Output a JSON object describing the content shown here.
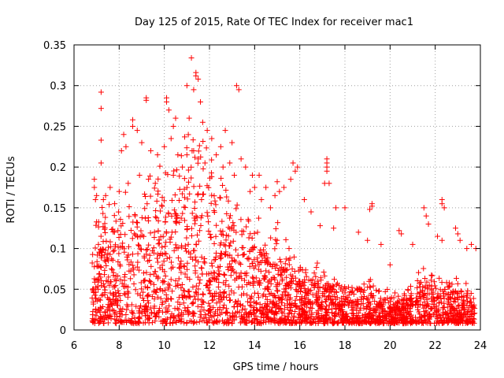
{
  "chart_data": {
    "type": "scatter",
    "title": "Day 125 of 2015, Rate Of TEC Index for receiver mac1",
    "xlabel": "GPS time / hours",
    "ylabel": "ROTI / TECUs",
    "xlim": [
      6,
      24
    ],
    "ylim": [
      0,
      0.35
    ],
    "xticks": [
      6,
      8,
      10,
      12,
      14,
      16,
      18,
      20,
      22,
      24
    ],
    "yticks": [
      0,
      0.05,
      0.1,
      0.15,
      0.2,
      0.25,
      0.3,
      0.35
    ],
    "ytick_labels": [
      "0",
      "0.05",
      "0.1",
      "0.15",
      "0.2",
      "0.25",
      "0.3",
      "0.35"
    ],
    "grid": true,
    "marker": "+",
    "color": "#ff0000",
    "series": [
      {
        "name": "mac1",
        "points": [
          [
            7.2,
            0.292
          ],
          [
            7.2,
            0.272
          ],
          [
            7.2,
            0.233
          ],
          [
            7.2,
            0.205
          ],
          [
            9.2,
            0.285
          ],
          [
            9.2,
            0.282
          ],
          [
            10.1,
            0.285
          ],
          [
            10.1,
            0.28
          ],
          [
            10.2,
            0.27
          ],
          [
            11.2,
            0.334
          ],
          [
            11.4,
            0.316
          ],
          [
            11.4,
            0.312
          ],
          [
            11.5,
            0.308
          ],
          [
            11.0,
            0.3
          ],
          [
            11.3,
            0.295
          ],
          [
            11.6,
            0.28
          ],
          [
            11.1,
            0.26
          ],
          [
            13.2,
            0.3
          ],
          [
            13.3,
            0.295
          ],
          [
            12.7,
            0.245
          ],
          [
            13.0,
            0.23
          ],
          [
            12.5,
            0.225
          ],
          [
            10.3,
            0.235
          ],
          [
            10.4,
            0.25
          ],
          [
            10.5,
            0.26
          ],
          [
            11.7,
            0.255
          ],
          [
            11.9,
            0.245
          ],
          [
            12.1,
            0.235
          ],
          [
            8.6,
            0.258
          ],
          [
            8.6,
            0.25
          ],
          [
            8.8,
            0.245
          ],
          [
            8.2,
            0.24
          ],
          [
            8.1,
            0.22
          ],
          [
            8.3,
            0.225
          ],
          [
            9.0,
            0.23
          ],
          [
            9.4,
            0.22
          ],
          [
            9.7,
            0.215
          ],
          [
            10.0,
            0.225
          ],
          [
            10.6,
            0.215
          ],
          [
            11.0,
            0.215
          ],
          [
            12.3,
            0.215
          ],
          [
            12.9,
            0.205
          ],
          [
            13.4,
            0.21
          ],
          [
            13.6,
            0.2
          ],
          [
            13.9,
            0.19
          ],
          [
            14.2,
            0.19
          ],
          [
            14.0,
            0.175
          ],
          [
            14.5,
            0.175
          ],
          [
            14.9,
            0.165
          ],
          [
            15.1,
            0.17
          ],
          [
            15.3,
            0.175
          ],
          [
            15.0,
            0.182
          ],
          [
            15.6,
            0.185
          ],
          [
            15.8,
            0.195
          ],
          [
            15.7,
            0.205
          ],
          [
            15.9,
            0.2
          ],
          [
            16.2,
            0.16
          ],
          [
            16.5,
            0.145
          ],
          [
            17.2,
            0.21
          ],
          [
            17.2,
            0.205
          ],
          [
            17.2,
            0.2
          ],
          [
            17.2,
            0.195
          ],
          [
            17.3,
            0.18
          ],
          [
            17.1,
            0.18
          ],
          [
            17.6,
            0.15
          ],
          [
            18.0,
            0.15
          ],
          [
            16.9,
            0.128
          ],
          [
            17.5,
            0.125
          ],
          [
            19.2,
            0.155
          ],
          [
            19.2,
            0.152
          ],
          [
            19.1,
            0.148
          ],
          [
            18.6,
            0.12
          ],
          [
            19.0,
            0.11
          ],
          [
            20.4,
            0.122
          ],
          [
            20.5,
            0.118
          ],
          [
            19.6,
            0.105
          ],
          [
            20.0,
            0.08
          ],
          [
            21.0,
            0.105
          ],
          [
            21.5,
            0.15
          ],
          [
            21.6,
            0.14
          ],
          [
            21.7,
            0.13
          ],
          [
            22.1,
            0.115
          ],
          [
            22.3,
            0.11
          ],
          [
            22.3,
            0.16
          ],
          [
            22.3,
            0.155
          ],
          [
            22.4,
            0.15
          ],
          [
            22.9,
            0.125
          ],
          [
            23.0,
            0.118
          ],
          [
            23.1,
            0.11
          ],
          [
            23.6,
            0.105
          ],
          [
            23.4,
            0.1
          ],
          [
            23.8,
            0.1
          ],
          [
            6.9,
            0.185
          ],
          [
            6.9,
            0.175
          ],
          [
            7.0,
            0.165
          ],
          [
            6.95,
            0.16
          ],
          [
            7.4,
            0.165
          ],
          [
            7.6,
            0.175
          ],
          [
            7.3,
            0.16
          ],
          [
            7.8,
            0.155
          ],
          [
            8.0,
            0.17
          ],
          [
            8.4,
            0.18
          ],
          [
            8.9,
            0.19
          ],
          [
            9.3,
            0.185
          ],
          [
            9.6,
            0.18
          ],
          [
            10.4,
            0.19
          ],
          [
            10.8,
            0.2
          ],
          [
            11.3,
            0.22
          ],
          [
            11.5,
            0.21
          ],
          [
            11.8,
            0.205
          ],
          [
            12.6,
            0.2
          ],
          [
            13.1,
            0.19
          ],
          [
            13.8,
            0.17
          ],
          [
            14.3,
            0.16
          ],
          [
            14.7,
            0.15
          ]
        ]
      }
    ]
  }
}
